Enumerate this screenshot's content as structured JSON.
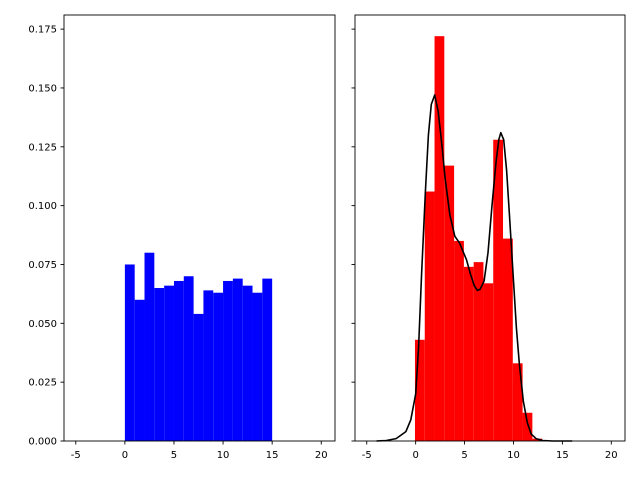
{
  "chart_data": [
    {
      "type": "bar",
      "subtype": "histogram",
      "bin_edges": [
        0,
        1,
        2,
        3,
        4,
        5,
        6,
        7,
        8,
        9,
        10,
        11,
        12,
        13,
        14,
        15
      ],
      "values": [
        0.075,
        0.06,
        0.08,
        0.065,
        0.066,
        0.068,
        0.07,
        0.054,
        0.064,
        0.063,
        0.068,
        0.069,
        0.066,
        0.063,
        0.069
      ],
      "color": "#0000ff",
      "xlim": [
        -6.2,
        21.4
      ],
      "ylim": [
        0,
        0.181
      ],
      "xticks": [
        "-5",
        "0",
        "5",
        "10",
        "15",
        "20"
      ],
      "yticks": [
        "0.000",
        "0.025",
        "0.050",
        "0.075",
        "0.100",
        "0.125",
        "0.150",
        "0.175"
      ],
      "grid": false
    },
    {
      "type": "bar",
      "subtype": "histogram with density line",
      "bin_edges": [
        -0.07,
        0.93,
        1.93,
        2.93,
        3.93,
        4.93,
        5.93,
        6.93,
        7.93,
        8.93,
        9.93,
        10.93,
        11.93,
        12.93
      ],
      "values": [
        0.043,
        0.106,
        0.172,
        0.117,
        0.085,
        0.074,
        0.076,
        0.067,
        0.128,
        0.086,
        0.033,
        0.012,
        0.001
      ],
      "color": "#ff0000",
      "line": {
        "color": "#000000",
        "x": [
          -4,
          -3,
          -2,
          -1,
          -0.5,
          0,
          0.3,
          0.6,
          1,
          1.3,
          1.6,
          1.95,
          2.3,
          2.7,
          3,
          3.5,
          4,
          4.5,
          4.8,
          5.2,
          5.6,
          6,
          6.3,
          6.6,
          7,
          7.4,
          7.8,
          8.2,
          8.5,
          8.7,
          9,
          9.3,
          9.6,
          10,
          10.3,
          10.6,
          11,
          11.4,
          11.8,
          12.3,
          13,
          14,
          16
        ],
        "y": [
          0,
          0.0002,
          0.001,
          0.004,
          0.009,
          0.02,
          0.04,
          0.07,
          0.106,
          0.13,
          0.143,
          0.147,
          0.14,
          0.125,
          0.112,
          0.096,
          0.087,
          0.084,
          0.081,
          0.077,
          0.071,
          0.066,
          0.064,
          0.0645,
          0.068,
          0.08,
          0.1,
          0.118,
          0.128,
          0.131,
          0.128,
          0.115,
          0.095,
          0.068,
          0.048,
          0.033,
          0.017,
          0.008,
          0.003,
          0.001,
          0.0002,
          0,
          0
        ]
      },
      "xlim": [
        -6.2,
        21.4
      ],
      "ylim": [
        0,
        0.181
      ],
      "xticks": [
        "-5",
        "0",
        "5",
        "10",
        "15",
        "20"
      ],
      "yticks_labeled": false,
      "grid": false
    }
  ]
}
